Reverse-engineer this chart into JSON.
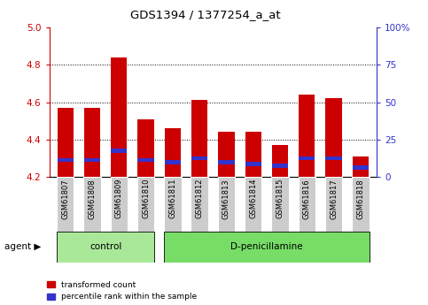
{
  "title": "GDS1394 / 1377254_a_at",
  "samples": [
    "GSM61807",
    "GSM61808",
    "GSM61809",
    "GSM61810",
    "GSM61811",
    "GSM61812",
    "GSM61813",
    "GSM61814",
    "GSM61815",
    "GSM61816",
    "GSM61817",
    "GSM61818"
  ],
  "red_values": [
    4.57,
    4.57,
    4.84,
    4.51,
    4.46,
    4.61,
    4.44,
    4.44,
    4.37,
    4.64,
    4.62,
    4.31
  ],
  "blue_values": [
    4.29,
    4.29,
    4.34,
    4.29,
    4.28,
    4.3,
    4.28,
    4.27,
    4.26,
    4.3,
    4.3,
    4.25
  ],
  "ymin": 4.2,
  "ymax": 5.0,
  "yticks": [
    4.2,
    4.4,
    4.6,
    4.8,
    5.0
  ],
  "y2ticks": [
    0,
    25,
    50,
    75,
    100
  ],
  "y2labels": [
    "0",
    "25",
    "50",
    "75",
    "100%"
  ],
  "dotted_lines": [
    4.4,
    4.6,
    4.8
  ],
  "groups": [
    {
      "label": "control",
      "start": 0,
      "end": 3
    },
    {
      "label": "D-penicillamine",
      "start": 4,
      "end": 11
    }
  ],
  "bar_width": 0.6,
  "red_color": "#cc0000",
  "blue_color": "#3333cc",
  "group_bg_control": "#aae899",
  "group_bg_dpenic": "#77dd66",
  "tick_bg": "#cccccc",
  "agent_text": "agent",
  "legend_red": "transformed count",
  "legend_blue": "percentile rank within the sample"
}
